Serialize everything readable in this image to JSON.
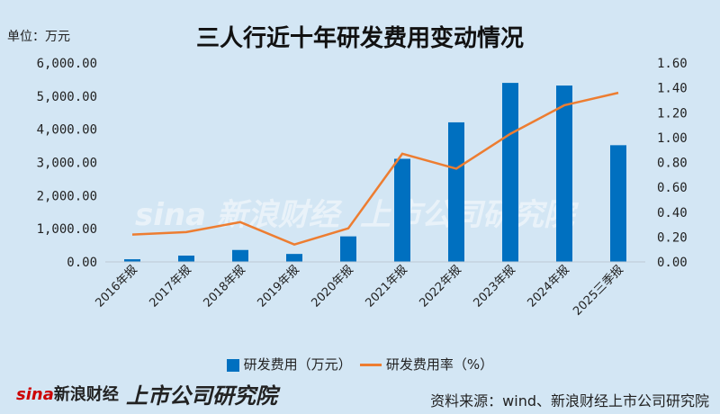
{
  "title": "三人行近十年研发费用变动情况",
  "unit_label": "单位：万元",
  "chart_data": {
    "type": "bar+line",
    "title": "三人行近十年研发费用变动情况",
    "categories": [
      "2016年报",
      "2017年报",
      "2018年报",
      "2019年报",
      "2020年报",
      "2021年报",
      "2022年报",
      "2023年报",
      "2024年报",
      "2025三季报"
    ],
    "series": [
      {
        "name": "研发费用（万元）",
        "type": "bar",
        "axis": "left",
        "color": "#0070c0",
        "values": [
          80,
          190,
          360,
          240,
          770,
          3110,
          4210,
          5400,
          5320,
          3520
        ]
      },
      {
        "name": "研发费用率（%）",
        "type": "line",
        "axis": "right",
        "color": "#ed7d31",
        "values": [
          0.22,
          0.24,
          0.32,
          0.14,
          0.27,
          0.87,
          0.75,
          1.03,
          1.26,
          1.36
        ]
      }
    ],
    "left_axis": {
      "ylim": [
        0,
        6000
      ],
      "ticks": [
        "0.00",
        "1,000.00",
        "2,000.00",
        "3,000.00",
        "4,000.00",
        "5,000.00",
        "6,000.00"
      ]
    },
    "right_axis": {
      "ylim": [
        0,
        1.6
      ],
      "ticks": [
        "0.00",
        "0.20",
        "0.40",
        "0.60",
        "0.80",
        "1.00",
        "1.20",
        "1.40",
        "1.60"
      ]
    },
    "grid": false,
    "legend": "bottom"
  },
  "legend": {
    "bar": "研发费用（万元）",
    "line": "研发费用率（%）"
  },
  "source": "资料来源：wind、新浪财经上市公司研究院",
  "watermark": {
    "brand": "sina新浪财经",
    "institute": "上市公司研究院"
  },
  "footer_logo": {
    "brand": "sina",
    "brand_cn": "新浪财经",
    "institute": "上市公司研究院"
  }
}
